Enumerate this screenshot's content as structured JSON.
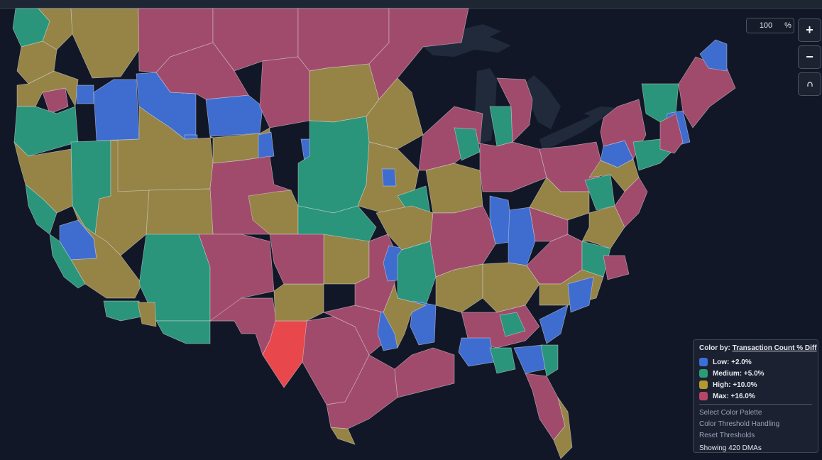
{
  "zoom": {
    "value": "100",
    "unit": "%"
  },
  "controls": {
    "zoom_in": "+",
    "zoom_out": "−",
    "reset_icon": "reset-north-icon"
  },
  "legend": {
    "color_by_label": "Color by:",
    "color_by_metric": "Transaction Count % Diff",
    "items": [
      {
        "label": "Low: +2.0%",
        "color": "#3a6fd8"
      },
      {
        "label": "Medium: +5.0%",
        "color": "#2a9d77"
      },
      {
        "label": "High: +10.0%",
        "color": "#b39a2e"
      },
      {
        "label": "Max: +16.0%",
        "color": "#b84566"
      }
    ],
    "links": [
      "Select Color Palette",
      "Color Threshold Handling",
      "Reset Thresholds"
    ],
    "footer": "Showing 420 DMAs"
  },
  "map": {
    "fill_colors": {
      "low": "#3f6dcf",
      "medium": "#2a957a",
      "high": "#958446",
      "max": "#a14b6c",
      "selected": "#e8474b",
      "lakes": "#202a3a"
    }
  }
}
